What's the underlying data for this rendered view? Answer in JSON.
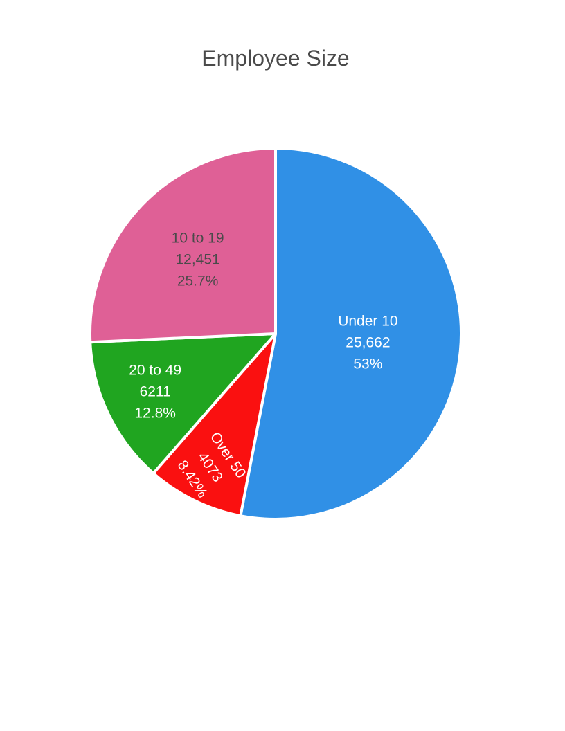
{
  "chart_data": {
    "type": "pie",
    "title": "Employee Size",
    "slices": [
      {
        "label": "Under 10",
        "value_text": "25,662",
        "percent_text": "53%",
        "value": 25662,
        "color": "#3090e6",
        "text_color": "#ffffff"
      },
      {
        "label": "Over 50",
        "value_text": "4073",
        "percent_text": "8.42%",
        "value": 4073,
        "color": "#fa1010",
        "text_color": "#ffffff"
      },
      {
        "label": "20 to 49",
        "value_text": "6211",
        "percent_text": "12.8%",
        "value": 6211,
        "color": "#20a520",
        "text_color": "#ffffff"
      },
      {
        "label": "10 to 19",
        "value_text": "12,451",
        "percent_text": "25.7%",
        "value": 12451,
        "color": "#df6096",
        "text_color": "#4a4a4a"
      }
    ]
  }
}
